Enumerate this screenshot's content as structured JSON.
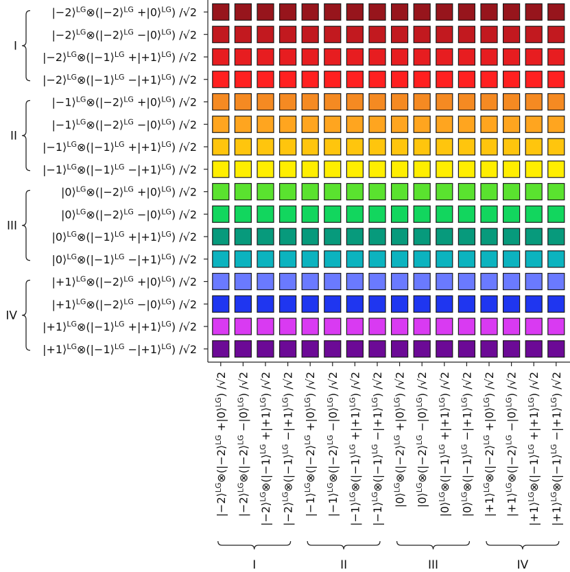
{
  "chart_data": {
    "type": "heatmap",
    "title": "",
    "rows": [
      {
        "label": "|−2⟩LG⊗(|−2⟩LG +|0⟩LG) /√2",
        "parts": [
          {
            "t": "|−2⟩"
          },
          {
            "t": "LG",
            "sup": true
          },
          {
            "t": "⊗(|−2⟩"
          },
          {
            "t": "LG",
            "sup": true
          },
          {
            "t": " +|0⟩"
          },
          {
            "t": "LG",
            "sup": true
          },
          {
            "t": ") /√2"
          }
        ],
        "color": "#97151c"
      },
      {
        "label": "|−2⟩LG⊗(|−2⟩LG −|0⟩LG) /√2",
        "parts": [
          {
            "t": "|−2⟩"
          },
          {
            "t": "LG",
            "sup": true
          },
          {
            "t": "⊗(|−2⟩"
          },
          {
            "t": "LG",
            "sup": true
          },
          {
            "t": " −|0⟩"
          },
          {
            "t": "LG",
            "sup": true
          },
          {
            "t": ") /√2"
          }
        ],
        "color": "#c2191f"
      },
      {
        "label": "|−2⟩LG⊗(|−1⟩LG +|+1⟩LG) /√2",
        "parts": [
          {
            "t": "|−2⟩"
          },
          {
            "t": "LG",
            "sup": true
          },
          {
            "t": "⊗(|−1⟩"
          },
          {
            "t": "LG",
            "sup": true
          },
          {
            "t": " +|+1⟩"
          },
          {
            "t": "LG",
            "sup": true
          },
          {
            "t": ") /√2"
          }
        ],
        "color": "#e71d20"
      },
      {
        "label": "|−2⟩LG⊗(|−1⟩LG −|+1⟩LG) /√2",
        "parts": [
          {
            "t": "|−2⟩"
          },
          {
            "t": "LG",
            "sup": true
          },
          {
            "t": "⊗(|−1⟩"
          },
          {
            "t": "LG",
            "sup": true
          },
          {
            "t": " −|+1⟩"
          },
          {
            "t": "LG",
            "sup": true
          },
          {
            "t": ") /√2"
          }
        ],
        "color": "#ff2020"
      },
      {
        "label": "|−1⟩LG⊗(|−2⟩LG +|0⟩LG) /√2",
        "parts": [
          {
            "t": "|−1⟩"
          },
          {
            "t": "LG",
            "sup": true
          },
          {
            "t": "⊗(|−2⟩"
          },
          {
            "t": "LG",
            "sup": true
          },
          {
            "t": " +|0⟩"
          },
          {
            "t": "LG",
            "sup": true
          },
          {
            "t": ") /√2"
          }
        ],
        "color": "#f58a22"
      },
      {
        "label": "|−1⟩LG⊗(|−2⟩LG −|0⟩LG) /√2",
        "parts": [
          {
            "t": "|−1⟩"
          },
          {
            "t": "LG",
            "sup": true
          },
          {
            "t": "⊗(|−2⟩"
          },
          {
            "t": "LG",
            "sup": true
          },
          {
            "t": " −|0⟩"
          },
          {
            "t": "LG",
            "sup": true
          },
          {
            "t": ") /√2"
          }
        ],
        "color": "#ffa51f"
      },
      {
        "label": "|−1⟩LG⊗(|−1⟩LG +|+1⟩LG) /√2",
        "parts": [
          {
            "t": "|−1⟩"
          },
          {
            "t": "LG",
            "sup": true
          },
          {
            "t": "⊗(|−1⟩"
          },
          {
            "t": "LG",
            "sup": true
          },
          {
            "t": " +|+1⟩"
          },
          {
            "t": "LG",
            "sup": true
          },
          {
            "t": ") /√2"
          }
        ],
        "color": "#ffc50d"
      },
      {
        "label": "|−1⟩LG⊗(|−1⟩LG −|+1⟩LG) /√2",
        "parts": [
          {
            "t": "|−1⟩"
          },
          {
            "t": "LG",
            "sup": true
          },
          {
            "t": "⊗(|−1⟩"
          },
          {
            "t": "LG",
            "sup": true
          },
          {
            "t": " −|+1⟩"
          },
          {
            "t": "LG",
            "sup": true
          },
          {
            "t": ") /√2"
          }
        ],
        "color": "#ffee00"
      },
      {
        "label": "|0⟩LG⊗(|−2⟩LG +|0⟩LG) /√2",
        "parts": [
          {
            "t": "|0⟩"
          },
          {
            "t": "LG",
            "sup": true
          },
          {
            "t": "⊗(|−2⟩"
          },
          {
            "t": "LG",
            "sup": true
          },
          {
            "t": " +|0⟩"
          },
          {
            "t": "LG",
            "sup": true
          },
          {
            "t": ") /√2"
          }
        ],
        "color": "#5ae22f"
      },
      {
        "label": "|0⟩LG⊗(|−2⟩LG −|0⟩LG) /√2",
        "parts": [
          {
            "t": "|0⟩"
          },
          {
            "t": "LG",
            "sup": true
          },
          {
            "t": "⊗(|−2⟩"
          },
          {
            "t": "LG",
            "sup": true
          },
          {
            "t": " −|0⟩"
          },
          {
            "t": "LG",
            "sup": true
          },
          {
            "t": ") /√2"
          }
        ],
        "color": "#12d65e"
      },
      {
        "label": "|0⟩LG⊗(|−1⟩LG +|+1⟩LG) /√2",
        "parts": [
          {
            "t": "|0⟩"
          },
          {
            "t": "LG",
            "sup": true
          },
          {
            "t": "⊗(|−1⟩"
          },
          {
            "t": "LG",
            "sup": true
          },
          {
            "t": " +|+1⟩"
          },
          {
            "t": "LG",
            "sup": true
          },
          {
            "t": ") /√2"
          }
        ],
        "color": "#079a7c"
      },
      {
        "label": "|0⟩LG⊗(|−1⟩LG −|+1⟩LG) /√2",
        "parts": [
          {
            "t": "|0⟩"
          },
          {
            "t": "LG",
            "sup": true
          },
          {
            "t": "⊗(|−1⟩"
          },
          {
            "t": "LG",
            "sup": true
          },
          {
            "t": " −|+1⟩"
          },
          {
            "t": "LG",
            "sup": true
          },
          {
            "t": ") /√2"
          }
        ],
        "color": "#0cb3bf"
      },
      {
        "label": "|+1⟩LG⊗(|−2⟩LG +|0⟩LG) /√2",
        "parts": [
          {
            "t": "|+1⟩"
          },
          {
            "t": "LG",
            "sup": true
          },
          {
            "t": "⊗(|−2⟩"
          },
          {
            "t": "LG",
            "sup": true
          },
          {
            "t": " +|0⟩"
          },
          {
            "t": "LG",
            "sup": true
          },
          {
            "t": ") /√2"
          }
        ],
        "color": "#6a7aff"
      },
      {
        "label": "|+1⟩LG⊗(|−2⟩LG −|0⟩LG) /√2",
        "parts": [
          {
            "t": "|+1⟩"
          },
          {
            "t": "LG",
            "sup": true
          },
          {
            "t": "⊗(|−2⟩"
          },
          {
            "t": "LG",
            "sup": true
          },
          {
            "t": " −|0⟩"
          },
          {
            "t": "LG",
            "sup": true
          },
          {
            "t": ") /√2"
          }
        ],
        "color": "#1f36f0"
      },
      {
        "label": "|+1⟩LG⊗(|−1⟩LG +|+1⟩LG) /√2",
        "parts": [
          {
            "t": "|+1⟩"
          },
          {
            "t": "LG",
            "sup": true
          },
          {
            "t": "⊗(|−1⟩"
          },
          {
            "t": "LG",
            "sup": true
          },
          {
            "t": " +|+1⟩"
          },
          {
            "t": "LG",
            "sup": true
          },
          {
            "t": ") /√2"
          }
        ],
        "color": "#d93af2"
      },
      {
        "label": "|+1⟩LG⊗(|−1⟩LG −|+1⟩LG) /√2",
        "parts": [
          {
            "t": "|+1⟩"
          },
          {
            "t": "LG",
            "sup": true
          },
          {
            "t": "⊗(|−1⟩"
          },
          {
            "t": "LG",
            "sup": true
          },
          {
            "t": " −|+1⟩"
          },
          {
            "t": "LG",
            "sup": true
          },
          {
            "t": ") /√2"
          }
        ],
        "color": "#6c0a96"
      }
    ],
    "groups": [
      {
        "label": "I",
        "start": 0,
        "end": 3
      },
      {
        "label": "II",
        "start": 4,
        "end": 7
      },
      {
        "label": "III",
        "start": 8,
        "end": 11
      },
      {
        "label": "IV",
        "start": 12,
        "end": 15
      }
    ],
    "columns_same_as_rows": true,
    "cell_fill": "row color",
    "grid": false
  }
}
